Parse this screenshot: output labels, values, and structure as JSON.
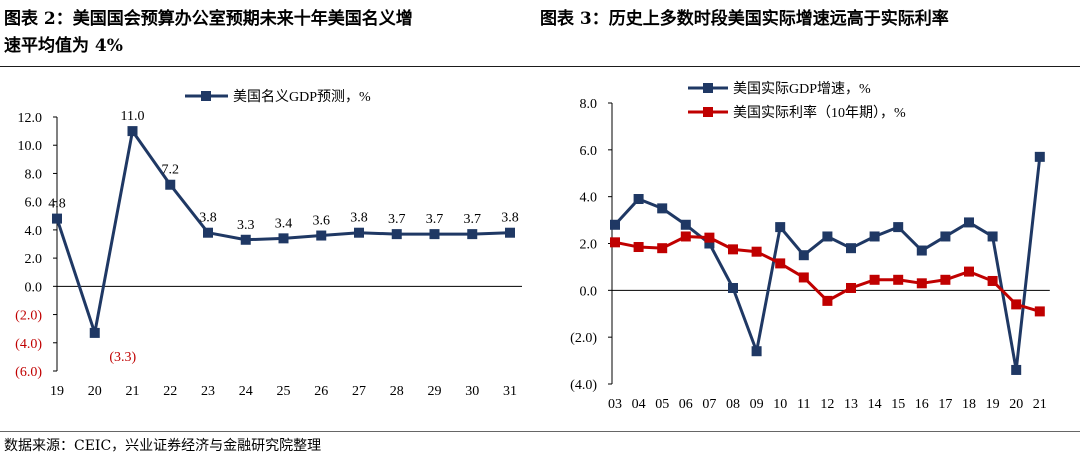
{
  "header": {
    "title2_line1": "图表 2：美国国会预算办公室预期未来十年美国名义增",
    "title2_line2": "速平均值为 4%",
    "title3": "图表 3：历史上多数时段美国实际增速远高于实际利率"
  },
  "footer": {
    "source": "数据来源：CEIC，兴业证券经济与金融研究院整理"
  },
  "colors": {
    "navy": "#1f3864",
    "red": "#c00000",
    "neg_label": "#c00000"
  },
  "chart_data": [
    {
      "type": "line",
      "title": "",
      "x": [
        "19",
        "20",
        "21",
        "22",
        "23",
        "24",
        "25",
        "26",
        "27",
        "28",
        "29",
        "30",
        "31"
      ],
      "series": [
        {
          "name": "美国名义GDP预测，%",
          "color": "#1f3864",
          "values": [
            4.8,
            -3.3,
            11.0,
            7.2,
            3.8,
            3.3,
            3.4,
            3.6,
            3.8,
            3.7,
            3.7,
            3.7,
            3.8
          ]
        }
      ],
      "data_labels": [
        "4.8",
        "(3.3)",
        "11.0",
        "7.2",
        "3.8",
        "3.3",
        "3.4",
        "3.6",
        "3.8",
        "3.7",
        "3.7",
        "3.7",
        "3.8"
      ],
      "yticks": [
        "12.0",
        "10.0",
        "8.0",
        "6.0",
        "4.0",
        "2.0",
        "0.0",
        "(2.0)",
        "(4.0)",
        "(6.0)"
      ],
      "ylim": [
        -6,
        12
      ],
      "legend": "top",
      "grid": false
    },
    {
      "type": "line",
      "title": "",
      "x": [
        "03",
        "04",
        "05",
        "06",
        "07",
        "08",
        "09",
        "10",
        "11",
        "12",
        "13",
        "14",
        "15",
        "16",
        "17",
        "18",
        "19",
        "20",
        "21"
      ],
      "series": [
        {
          "name": "美国实际GDP增速，%",
          "color": "#1f3864",
          "values": [
            2.8,
            3.9,
            3.5,
            2.8,
            2.0,
            0.1,
            -2.6,
            2.7,
            1.5,
            2.3,
            1.8,
            2.3,
            2.7,
            1.7,
            2.3,
            2.9,
            2.3,
            -3.4,
            5.7
          ]
        },
        {
          "name": "美国实际利率（10年期），%",
          "color": "#c00000",
          "values": [
            2.05,
            1.85,
            1.8,
            2.3,
            2.25,
            1.75,
            1.65,
            1.15,
            0.55,
            -0.45,
            0.1,
            0.45,
            0.45,
            0.3,
            0.45,
            0.8,
            0.4,
            -0.6,
            -0.9
          ]
        }
      ],
      "yticks": [
        "8.0",
        "6.0",
        "4.0",
        "2.0",
        "0.0",
        "(2.0)",
        "(4.0)"
      ],
      "ylim": [
        -4,
        8
      ],
      "legend": "top-left",
      "grid": false
    }
  ]
}
